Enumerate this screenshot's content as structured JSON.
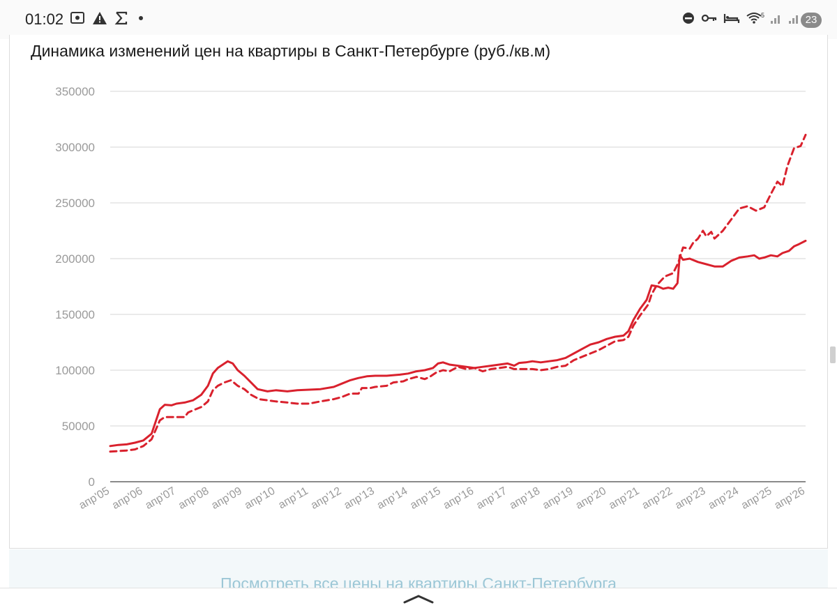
{
  "status_bar": {
    "time": "01:02",
    "notification_count": "23",
    "network_label": "5"
  },
  "chart": {
    "title": "Динамика изменений цен на квартиры в Санкт-Петербурге (руб./кв.м)"
  },
  "link": {
    "text": "Посмотреть все цены на квартиры Санкт-Петербурга"
  },
  "colors": {
    "series": "#d9212d",
    "grid": "#d4d4d4",
    "axis_text": "#9a9a9a",
    "link": "#9cc7d6"
  },
  "chart_data": {
    "type": "line",
    "title": "Динамика изменений цен на квартиры в Санкт-Петербурге (руб./кв.м)",
    "xlabel": "",
    "ylabel": "",
    "ylim": [
      0,
      350000
    ],
    "yticks": [
      0,
      50000,
      100000,
      150000,
      200000,
      250000,
      300000,
      350000
    ],
    "xlim": [
      2005.25,
      2026.25
    ],
    "xticks": [
      {
        "x": 2005.25,
        "label": "апр'05"
      },
      {
        "x": 2006.25,
        "label": "апр'06"
      },
      {
        "x": 2007.25,
        "label": "апр'07"
      },
      {
        "x": 2008.25,
        "label": "апр'08"
      },
      {
        "x": 2009.25,
        "label": "апр'09"
      },
      {
        "x": 2010.25,
        "label": "апр'10"
      },
      {
        "x": 2011.25,
        "label": "апр'11"
      },
      {
        "x": 2012.25,
        "label": "апр'12"
      },
      {
        "x": 2013.25,
        "label": "апр'13"
      },
      {
        "x": 2014.25,
        "label": "апр'14"
      },
      {
        "x": 2015.25,
        "label": "апр'15"
      },
      {
        "x": 2016.25,
        "label": "апр'16"
      },
      {
        "x": 2017.25,
        "label": "апр'17"
      },
      {
        "x": 2018.25,
        "label": "апр'18"
      },
      {
        "x": 2019.25,
        "label": "апр'19"
      },
      {
        "x": 2020.25,
        "label": "апр'20"
      },
      {
        "x": 2021.25,
        "label": "апр'21"
      },
      {
        "x": 2022.25,
        "label": "апр'22"
      },
      {
        "x": 2023.25,
        "label": "апр'23"
      },
      {
        "x": 2024.25,
        "label": "апр'24"
      },
      {
        "x": 2025.25,
        "label": "апр'25"
      },
      {
        "x": 2026.25,
        "label": "апр'26"
      }
    ],
    "grid": true,
    "series": [
      {
        "style": "solid",
        "points": [
          [
            2005.25,
            32000
          ],
          [
            2005.5,
            33000
          ],
          [
            2005.75,
            33500
          ],
          [
            2006.0,
            35000
          ],
          [
            2006.25,
            37000
          ],
          [
            2006.5,
            43000
          ],
          [
            2006.75,
            65000
          ],
          [
            2006.9,
            69000
          ],
          [
            2007.1,
            68500
          ],
          [
            2007.25,
            70000
          ],
          [
            2007.5,
            71000
          ],
          [
            2007.75,
            73000
          ],
          [
            2008.0,
            78000
          ],
          [
            2008.2,
            86000
          ],
          [
            2008.35,
            97000
          ],
          [
            2008.5,
            102000
          ],
          [
            2008.7,
            106000
          ],
          [
            2008.8,
            108000
          ],
          [
            2008.95,
            106000
          ],
          [
            2009.1,
            100000
          ],
          [
            2009.3,
            95000
          ],
          [
            2009.5,
            89000
          ],
          [
            2009.7,
            83000
          ],
          [
            2010.0,
            81000
          ],
          [
            2010.25,
            82000
          ],
          [
            2010.6,
            81000
          ],
          [
            2010.9,
            82000
          ],
          [
            2011.25,
            82500
          ],
          [
            2011.6,
            83000
          ],
          [
            2012.0,
            85000
          ],
          [
            2012.25,
            88000
          ],
          [
            2012.5,
            91000
          ],
          [
            2012.75,
            93000
          ],
          [
            2013.0,
            94500
          ],
          [
            2013.25,
            95000
          ],
          [
            2013.6,
            95000
          ],
          [
            2014.0,
            96000
          ],
          [
            2014.25,
            97000
          ],
          [
            2014.5,
            99000
          ],
          [
            2014.75,
            100000
          ],
          [
            2015.0,
            102000
          ],
          [
            2015.15,
            106000
          ],
          [
            2015.3,
            107000
          ],
          [
            2015.5,
            105000
          ],
          [
            2015.75,
            104000
          ],
          [
            2016.0,
            103000
          ],
          [
            2016.25,
            102000
          ],
          [
            2016.5,
            103000
          ],
          [
            2016.75,
            104000
          ],
          [
            2017.0,
            105000
          ],
          [
            2017.25,
            106000
          ],
          [
            2017.45,
            104000
          ],
          [
            2017.6,
            106500
          ],
          [
            2017.8,
            107000
          ],
          [
            2018.0,
            108000
          ],
          [
            2018.25,
            107000
          ],
          [
            2018.5,
            108000
          ],
          [
            2018.75,
            109000
          ],
          [
            2019.0,
            111000
          ],
          [
            2019.25,
            115000
          ],
          [
            2019.5,
            119000
          ],
          [
            2019.75,
            123000
          ],
          [
            2020.0,
            125000
          ],
          [
            2020.25,
            128000
          ],
          [
            2020.5,
            130000
          ],
          [
            2020.75,
            131000
          ],
          [
            2020.9,
            135000
          ],
          [
            2021.05,
            145000
          ],
          [
            2021.25,
            155000
          ],
          [
            2021.45,
            163000
          ],
          [
            2021.6,
            176000
          ],
          [
            2021.8,
            175000
          ],
          [
            2021.95,
            173000
          ],
          [
            2022.1,
            174000
          ],
          [
            2022.25,
            173000
          ],
          [
            2022.38,
            178000
          ],
          [
            2022.45,
            203000
          ],
          [
            2022.55,
            199000
          ],
          [
            2022.75,
            200000
          ],
          [
            2023.0,
            197000
          ],
          [
            2023.25,
            195000
          ],
          [
            2023.5,
            193000
          ],
          [
            2023.75,
            193000
          ],
          [
            2024.0,
            198000
          ],
          [
            2024.25,
            201000
          ],
          [
            2024.5,
            202000
          ],
          [
            2024.7,
            203000
          ],
          [
            2024.85,
            200000
          ],
          [
            2025.0,
            201000
          ],
          [
            2025.2,
            203000
          ],
          [
            2025.4,
            202000
          ],
          [
            2025.55,
            205000
          ],
          [
            2025.75,
            207000
          ],
          [
            2025.9,
            211000
          ],
          [
            2026.05,
            213000
          ],
          [
            2026.25,
            216000
          ]
        ]
      },
      {
        "style": "dashed",
        "points": [
          [
            2005.25,
            27000
          ],
          [
            2005.5,
            27500
          ],
          [
            2005.75,
            28000
          ],
          [
            2006.0,
            29000
          ],
          [
            2006.25,
            32000
          ],
          [
            2006.5,
            38000
          ],
          [
            2006.75,
            55000
          ],
          [
            2006.9,
            58000
          ],
          [
            2007.25,
            58000
          ],
          [
            2007.5,
            58000
          ],
          [
            2007.6,
            62000
          ],
          [
            2007.75,
            64000
          ],
          [
            2008.0,
            67000
          ],
          [
            2008.2,
            72000
          ],
          [
            2008.35,
            82000
          ],
          [
            2008.5,
            86000
          ],
          [
            2008.7,
            89000
          ],
          [
            2008.9,
            91000
          ],
          [
            2009.1,
            86000
          ],
          [
            2009.3,
            83000
          ],
          [
            2009.5,
            78000
          ],
          [
            2009.75,
            74000
          ],
          [
            2010.0,
            73000
          ],
          [
            2010.25,
            72000
          ],
          [
            2010.6,
            71000
          ],
          [
            2010.9,
            70000
          ],
          [
            2011.25,
            70000
          ],
          [
            2011.6,
            72000
          ],
          [
            2012.0,
            74000
          ],
          [
            2012.25,
            76000
          ],
          [
            2012.5,
            79000
          ],
          [
            2012.75,
            79000
          ],
          [
            2012.85,
            84000
          ],
          [
            2013.1,
            84000
          ],
          [
            2013.25,
            85000
          ],
          [
            2013.6,
            86000
          ],
          [
            2013.8,
            89000
          ],
          [
            2014.1,
            90000
          ],
          [
            2014.25,
            92000
          ],
          [
            2014.5,
            94000
          ],
          [
            2014.75,
            92000
          ],
          [
            2014.9,
            94000
          ],
          [
            2015.1,
            98000
          ],
          [
            2015.3,
            100000
          ],
          [
            2015.5,
            99000
          ],
          [
            2015.75,
            103000
          ],
          [
            2016.0,
            101000
          ],
          [
            2016.25,
            102000
          ],
          [
            2016.5,
            99000
          ],
          [
            2016.75,
            101000
          ],
          [
            2017.0,
            102000
          ],
          [
            2017.25,
            103000
          ],
          [
            2017.45,
            101000
          ],
          [
            2017.75,
            101000
          ],
          [
            2018.0,
            101000
          ],
          [
            2018.25,
            100000
          ],
          [
            2018.5,
            101000
          ],
          [
            2018.75,
            103000
          ],
          [
            2019.0,
            104000
          ],
          [
            2019.25,
            109000
          ],
          [
            2019.5,
            112000
          ],
          [
            2019.75,
            115000
          ],
          [
            2020.0,
            118000
          ],
          [
            2020.25,
            122000
          ],
          [
            2020.5,
            126000
          ],
          [
            2020.75,
            127000
          ],
          [
            2020.9,
            130000
          ],
          [
            2021.05,
            140000
          ],
          [
            2021.25,
            149000
          ],
          [
            2021.5,
            159000
          ],
          [
            2021.6,
            168000
          ],
          [
            2021.75,
            176000
          ],
          [
            2022.0,
            184000
          ],
          [
            2022.25,
            187000
          ],
          [
            2022.4,
            196000
          ],
          [
            2022.55,
            210000
          ],
          [
            2022.75,
            209000
          ],
          [
            2022.85,
            214000
          ],
          [
            2023.0,
            218000
          ],
          [
            2023.15,
            225000
          ],
          [
            2023.25,
            220000
          ],
          [
            2023.4,
            224000
          ],
          [
            2023.5,
            218000
          ],
          [
            2023.75,
            225000
          ],
          [
            2024.0,
            235000
          ],
          [
            2024.25,
            245000
          ],
          [
            2024.5,
            247000
          ],
          [
            2024.75,
            243000
          ],
          [
            2025.0,
            246000
          ],
          [
            2025.2,
            258000
          ],
          [
            2025.4,
            269000
          ],
          [
            2025.55,
            265000
          ],
          [
            2025.7,
            283000
          ],
          [
            2025.9,
            299000
          ],
          [
            2026.1,
            301000
          ],
          [
            2026.25,
            311000
          ]
        ]
      }
    ]
  }
}
